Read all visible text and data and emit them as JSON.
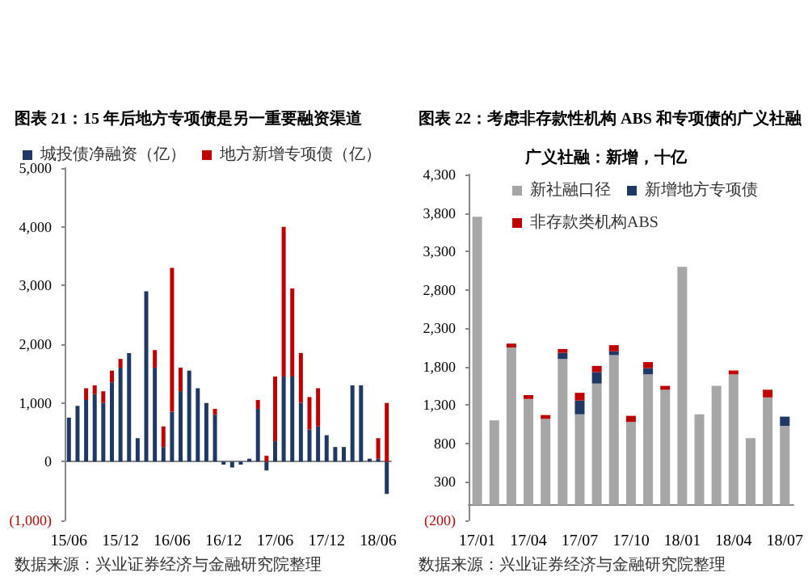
{
  "chart_data": [
    {
      "type": "bar",
      "title": "图表 21：15 年后地方专项债是另一重要融资渠道",
      "stacked": true,
      "legend": "top",
      "categories": [
        "15/06",
        null,
        null,
        null,
        null,
        null,
        "15/12",
        null,
        null,
        null,
        null,
        null,
        "16/06",
        null,
        null,
        null,
        null,
        null,
        "16/12",
        null,
        null,
        null,
        null,
        null,
        "17/06",
        null,
        null,
        null,
        null,
        null,
        "17/12",
        null,
        null,
        null,
        null,
        null,
        "18/06",
        null
      ],
      "series": [
        {
          "name": "城投债净融资（亿）",
          "color": "#1f3864",
          "values": [
            750,
            950,
            1050,
            1150,
            1000,
            1350,
            1600,
            1850,
            400,
            2900,
            1600,
            250,
            850,
            1200,
            1550,
            1250,
            1000,
            800,
            -50,
            -100,
            -50,
            50,
            900,
            -150,
            350,
            1450,
            1450,
            1000,
            550,
            600,
            450,
            250,
            250,
            1300,
            1300,
            50,
            50,
            -550
          ]
        },
        {
          "name": "地方新增专项债（亿）",
          "color": "#c00000",
          "values": [
            null,
            null,
            200,
            150,
            200,
            200,
            150,
            null,
            null,
            null,
            300,
            350,
            2450,
            400,
            null,
            null,
            null,
            100,
            null,
            null,
            null,
            null,
            150,
            100,
            1100,
            2550,
            1500,
            850,
            550,
            650,
            null,
            null,
            null,
            null,
            null,
            null,
            350,
            1000
          ]
        }
      ],
      "ylim": [
        -1000,
        5000
      ],
      "yticks": [
        {
          "value": -1000,
          "label": "(1,000)"
        },
        {
          "value": 0,
          "label": "0"
        },
        {
          "value": 1000,
          "label": "1,000"
        },
        {
          "value": 2000,
          "label": "2,000"
        },
        {
          "value": 3000,
          "label": "3,000"
        },
        {
          "value": 4000,
          "label": "4,000"
        },
        {
          "value": 5000,
          "label": "5,000"
        }
      ],
      "annotations": [
        "数据来源：兴业证券经济与金融研究院整理"
      ]
    },
    {
      "type": "bar",
      "title": "图表 22：考虑非存款性机构 ABS 和专项债的广义社融",
      "subtitle": "广义社融：新增，十亿",
      "stacked": true,
      "legend": "top",
      "categories": [
        "17/01",
        null,
        null,
        "17/04",
        null,
        null,
        "17/07",
        null,
        null,
        "17/10",
        null,
        null,
        "18/01",
        null,
        null,
        "18/04",
        null,
        null,
        "18/07"
      ],
      "series": [
        {
          "name": "新社融口径",
          "color": "#a6a6a6",
          "values": [
            3750,
            1100,
            2050,
            1380,
            1120,
            1900,
            1180,
            1580,
            1950,
            1080,
            1700,
            1500,
            3100,
            1180,
            1550,
            1700,
            870,
            1400,
            1030
          ]
        },
        {
          "name": "新增地方专项债",
          "color": "#1f3864",
          "values": [
            null,
            null,
            null,
            null,
            null,
            80,
            180,
            150,
            50,
            null,
            80,
            null,
            null,
            null,
            null,
            null,
            null,
            null,
            120
          ]
        },
        {
          "name": "非存款类机构ABS",
          "color": "#c00000",
          "values": [
            null,
            null,
            50,
            50,
            50,
            50,
            100,
            80,
            80,
            80,
            80,
            50,
            null,
            null,
            null,
            50,
            null,
            100,
            null
          ]
        }
      ],
      "ylim": [
        -200,
        4300
      ],
      "yticks": [
        {
          "value": -200,
          "label": "(200)"
        },
        {
          "value": 300,
          "label": "300"
        },
        {
          "value": 800,
          "label": "800"
        },
        {
          "value": 1300,
          "label": "1,300"
        },
        {
          "value": 1800,
          "label": "1,800"
        },
        {
          "value": 2300,
          "label": "2,300"
        },
        {
          "value": 2800,
          "label": "2,800"
        },
        {
          "value": 3300,
          "label": "3,300"
        },
        {
          "value": 3800,
          "label": "3,800"
        },
        {
          "value": 4300,
          "label": "4,300"
        }
      ],
      "annotations": [
        "数据来源：兴业证券经济与金融研究院整理"
      ]
    }
  ]
}
